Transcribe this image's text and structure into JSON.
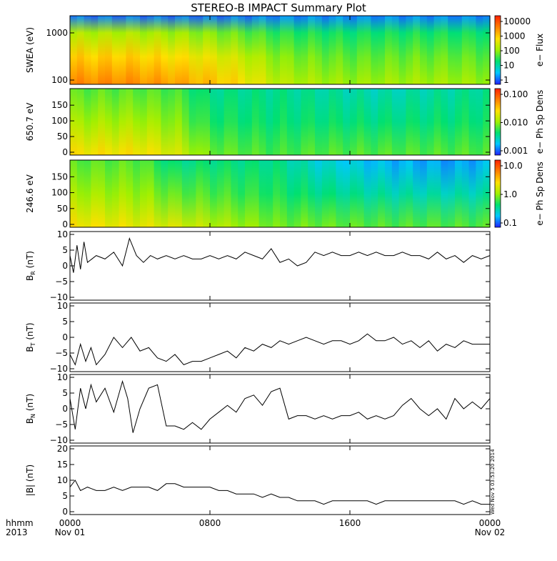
{
  "title": "STEREO-B IMPACT Summary Plot",
  "time_axis": {
    "corner_labels": [
      "hhmm",
      "2013"
    ],
    "ticks": [
      {
        "time": "0000",
        "date": "Nov 01",
        "hour": 0
      },
      {
        "time": "0800",
        "date": "",
        "hour": 8
      },
      {
        "time": "1600",
        "date": "",
        "hour": 16
      },
      {
        "time": "0000",
        "date": "Nov 02",
        "hour": 24
      }
    ]
  },
  "stamp": "Wed Nov 5 03:53:20 2014",
  "colors": {
    "colormap": [
      "#2020ff",
      "#00c8ff",
      "#00e070",
      "#a0f000",
      "#ffe000",
      "#ff8000",
      "#ff2000"
    ]
  },
  "chart_data": [
    {
      "type": "heatmap",
      "ylabel": "SWEA (eV)",
      "ytick_labels": [
        "1000",
        "100"
      ],
      "colorbar": {
        "label": "e− Flux",
        "tick_labels": [
          "10000",
          "1000",
          "100",
          "10",
          "1"
        ],
        "scale": "log"
      },
      "description_values": {
        "energy_range_eV": [
          90,
          2000
        ],
        "hours": [
          0,
          3,
          6,
          9,
          12,
          16,
          20,
          24
        ],
        "low_energy_level": [
          0.82,
          0.82,
          0.78,
          0.7,
          0.55,
          0.5,
          0.52,
          0.5
        ],
        "high_energy_level": [
          0.08,
          0.08,
          0.08,
          0.08,
          0.1,
          0.1,
          0.1,
          0.1
        ]
      }
    },
    {
      "type": "heatmap",
      "ylabel": "650.7 eV",
      "ytick_labels": [
        "150",
        "100",
        "50",
        "0"
      ],
      "ylim": [
        0,
        180
      ],
      "colorbar": {
        "label": "e− Ph Sp Dens",
        "tick_labels": [
          "0.100",
          "0.010",
          "0.001"
        ],
        "scale": "log"
      },
      "description_values": {
        "hours": [
          0,
          4,
          6,
          8,
          12,
          14,
          18,
          22,
          24
        ],
        "level_near_90deg": [
          0.42,
          0.42,
          0.4,
          0.3,
          0.3,
          0.28,
          0.25,
          0.28,
          0.3
        ],
        "level_near_0deg": [
          0.66,
          0.66,
          0.6,
          0.45,
          0.4,
          0.42,
          0.42,
          0.42,
          0.42
        ]
      }
    },
    {
      "type": "heatmap",
      "ylabel": "246.6 eV",
      "ytick_labels": [
        "150",
        "100",
        "50",
        "0"
      ],
      "ylim": [
        0,
        180
      ],
      "colorbar": {
        "label": "e− Ph Sp Dens",
        "tick_labels": [
          "10.0",
          "1.0",
          "0.1"
        ],
        "scale": "log"
      },
      "description_values": {
        "hours": [
          0,
          4,
          6,
          8,
          12,
          14,
          18,
          22,
          24
        ],
        "level_near_90deg": [
          0.42,
          0.42,
          0.3,
          0.32,
          0.3,
          0.22,
          0.15,
          0.12,
          0.15
        ],
        "level_near_0deg": [
          0.66,
          0.62,
          0.6,
          0.55,
          0.45,
          0.45,
          0.42,
          0.42,
          0.42
        ]
      }
    },
    {
      "type": "line",
      "ylabel": "B",
      "ylabel_sub": "R",
      "ylabel_unit": "(nT)",
      "ylim": [
        -10,
        10
      ],
      "ytick_labels": [
        "10",
        "5",
        "0",
        "−5",
        "−10"
      ],
      "x": [
        0,
        0.2,
        0.4,
        0.6,
        0.8,
        1.0,
        1.5,
        2.0,
        2.5,
        3.0,
        3.4,
        3.8,
        4.2,
        4.6,
        5.0,
        5.5,
        6.0,
        6.5,
        7.0,
        7.5,
        8.0,
        8.5,
        9.0,
        9.5,
        10.0,
        10.5,
        11.0,
        11.5,
        12.0,
        12.5,
        13.0,
        13.5,
        14.0,
        14.5,
        15.0,
        15.5,
        16.0,
        16.5,
        17.0,
        17.5,
        18.0,
        18.5,
        19.0,
        19.5,
        20.0,
        20.5,
        21.0,
        21.5,
        22.0,
        22.5,
        23.0,
        23.5,
        24.0
      ],
      "y": [
        3,
        -2,
        6,
        -1,
        7,
        1,
        3,
        2,
        4,
        0,
        8,
        3,
        1,
        3,
        2,
        3,
        2,
        3,
        2,
        2,
        3,
        2,
        3,
        2,
        4,
        3,
        2,
        5,
        1,
        2,
        0,
        1,
        4,
        3,
        4,
        3,
        3,
        4,
        3,
        4,
        3,
        3,
        4,
        3,
        3,
        2,
        4,
        2,
        3,
        1,
        3,
        2,
        3
      ]
    },
    {
      "type": "line",
      "ylabel": "B",
      "ylabel_sub": "T",
      "ylabel_unit": "(nT)",
      "ylim": [
        -10,
        10
      ],
      "ytick_labels": [
        "10",
        "5",
        "0",
        "−5",
        "−10"
      ],
      "x": [
        0,
        0.3,
        0.6,
        0.9,
        1.2,
        1.5,
        2.0,
        2.5,
        3.0,
        3.5,
        4.0,
        4.5,
        5.0,
        5.5,
        6.0,
        6.5,
        7.0,
        7.5,
        8.0,
        8.5,
        9.0,
        9.5,
        10.0,
        10.5,
        11.0,
        11.5,
        12.0,
        12.5,
        13.0,
        13.5,
        14.0,
        14.5,
        15.0,
        15.5,
        16.0,
        16.5,
        17.0,
        17.5,
        18.0,
        18.5,
        19.0,
        19.5,
        20.0,
        20.5,
        21.0,
        21.5,
        22.0,
        22.5,
        23.0,
        23.5,
        24.0
      ],
      "y": [
        -5,
        -8,
        -2,
        -7,
        -3,
        -8,
        -5,
        0,
        -3,
        0,
        -4,
        -3,
        -6,
        -7,
        -5,
        -8,
        -7,
        -7,
        -6,
        -5,
        -4,
        -6,
        -3,
        -4,
        -2,
        -3,
        -1,
        -2,
        -1,
        0,
        -1,
        -2,
        -1,
        -1,
        -2,
        -1,
        1,
        -1,
        -1,
        0,
        -2,
        -1,
        -3,
        -1,
        -4,
        -2,
        -3,
        -1,
        -2,
        -2,
        -2
      ]
    },
    {
      "type": "line",
      "ylabel": "B",
      "ylabel_sub": "N",
      "ylabel_unit": "(nT)",
      "ylim": [
        -10,
        10
      ],
      "ytick_labels": [
        "10",
        "5",
        "0",
        "−5",
        "−10"
      ],
      "x": [
        0,
        0.3,
        0.6,
        0.9,
        1.2,
        1.5,
        2.0,
        2.5,
        3.0,
        3.3,
        3.6,
        4.0,
        4.5,
        5.0,
        5.5,
        6.0,
        6.5,
        7.0,
        7.5,
        8.0,
        8.5,
        9.0,
        9.5,
        10.0,
        10.5,
        11.0,
        11.5,
        12.0,
        12.5,
        13.0,
        13.5,
        14.0,
        14.5,
        15.0,
        15.5,
        16.0,
        16.5,
        17.0,
        17.5,
        18.0,
        18.5,
        19.0,
        19.5,
        20.0,
        20.5,
        21.0,
        21.5,
        22.0,
        22.5,
        23.0,
        23.5,
        24.0
      ],
      "y": [
        3,
        -6,
        6,
        0,
        7,
        2,
        6,
        -1,
        8,
        3,
        -7,
        0,
        6,
        7,
        -5,
        -5,
        -6,
        -4,
        -6,
        -3,
        -1,
        1,
        -1,
        3,
        4,
        1,
        5,
        6,
        -3,
        -2,
        -2,
        -3,
        -2,
        -3,
        -2,
        -2,
        -1,
        -3,
        -2,
        -3,
        -2,
        1,
        3,
        0,
        -2,
        0,
        -3,
        3,
        0,
        2,
        0,
        3
      ]
    },
    {
      "type": "line",
      "ylabel": "|B| (nT)",
      "ylim": [
        0,
        20
      ],
      "ytick_labels": [
        "20",
        "15",
        "10",
        "5",
        "0"
      ],
      "x": [
        0,
        0.3,
        0.6,
        1.0,
        1.5,
        2.0,
        2.5,
        3.0,
        3.5,
        4.0,
        4.5,
        5.0,
        5.5,
        6.0,
        6.5,
        7.0,
        7.5,
        8.0,
        8.5,
        9.0,
        9.5,
        10.0,
        10.5,
        11.0,
        11.5,
        12.0,
        12.5,
        13.0,
        13.5,
        14.0,
        14.5,
        15.0,
        15.5,
        16.0,
        16.5,
        17.0,
        17.5,
        18.0,
        18.5,
        19.0,
        19.5,
        20.0,
        20.5,
        21.0,
        21.5,
        22.0,
        22.5,
        23.0,
        23.5,
        24.0
      ],
      "y": [
        8,
        10,
        7,
        8,
        7,
        7,
        8,
        7,
        8,
        8,
        8,
        7,
        9,
        9,
        8,
        8,
        8,
        8,
        7,
        7,
        6,
        6,
        6,
        5,
        6,
        5,
        5,
        4,
        4,
        4,
        3,
        4,
        4,
        4,
        4,
        4,
        3,
        4,
        4,
        4,
        4,
        4,
        4,
        4,
        4,
        4,
        3,
        4,
        3,
        3
      ]
    }
  ]
}
